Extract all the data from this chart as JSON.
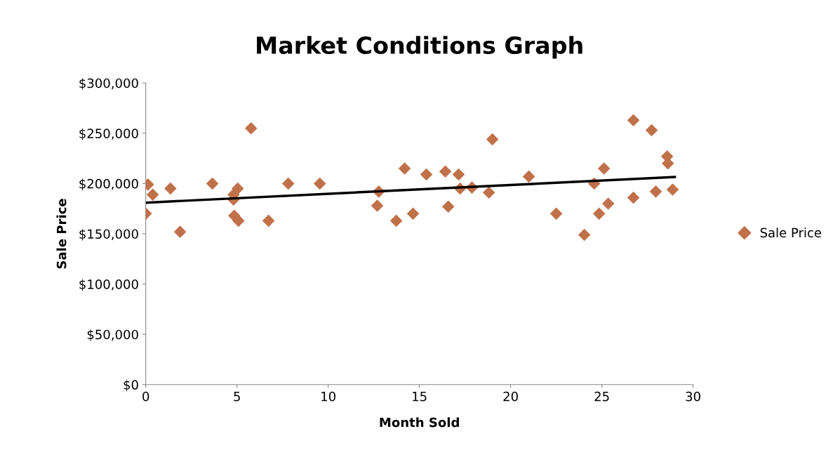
{
  "chart_data": {
    "type": "scatter",
    "title": "Market Conditions Graph",
    "xlabel": "Month Sold",
    "ylabel": "Sale Price",
    "xlim": [
      0,
      30
    ],
    "xticks": [
      0,
      5,
      10,
      15,
      20,
      25,
      30
    ],
    "ylim": [
      0,
      300000
    ],
    "yticks": [
      {
        "value": 0,
        "label": "$0"
      },
      {
        "value": 50000,
        "label": "$50,000"
      },
      {
        "value": 100000,
        "label": "$100,000"
      },
      {
        "value": 150000,
        "label": "$150,000"
      },
      {
        "value": 200000,
        "label": "$200,000"
      },
      {
        "value": 250000,
        "label": "$250,000"
      },
      {
        "value": 300000,
        "label": "$300,000"
      }
    ],
    "grid": false,
    "legend": "right",
    "marker": "diamond",
    "series": [
      {
        "name": "Sale Price",
        "color": "#c0714a",
        "x": [
          0.0,
          0.12,
          0.38,
          1.35,
          1.88,
          3.65,
          4.81,
          5.04,
          4.81,
          4.85,
          5.08,
          5.77,
          6.73,
          7.81,
          9.54,
          12.77,
          12.69,
          13.73,
          14.19,
          14.65,
          15.38,
          16.42,
          17.15,
          16.58,
          17.23,
          17.88,
          18.81,
          19.0,
          21.0,
          22.5,
          24.04,
          24.58,
          25.12,
          24.85,
          25.35,
          26.73,
          26.73,
          27.73,
          27.96,
          28.58,
          28.62,
          28.88
        ],
        "values": [
          170000,
          199000,
          189000,
          195000,
          152000,
          200000,
          189000,
          195000,
          184000,
          168000,
          163000,
          255000,
          163000,
          200000,
          200000,
          192000,
          178000,
          163000,
          215000,
          170000,
          209000,
          212000,
          209000,
          177000,
          195000,
          196000,
          191000,
          244000,
          207000,
          170000,
          149000,
          200000,
          215000,
          170000,
          180000,
          263000,
          186000,
          253000,
          192000,
          227000,
          220000,
          194000
        ]
      },
      {
        "type": "line",
        "color": "#000000",
        "marker": "none",
        "x": [
          0,
          29
        ],
        "values": [
          181000,
          206500
        ]
      }
    ]
  }
}
